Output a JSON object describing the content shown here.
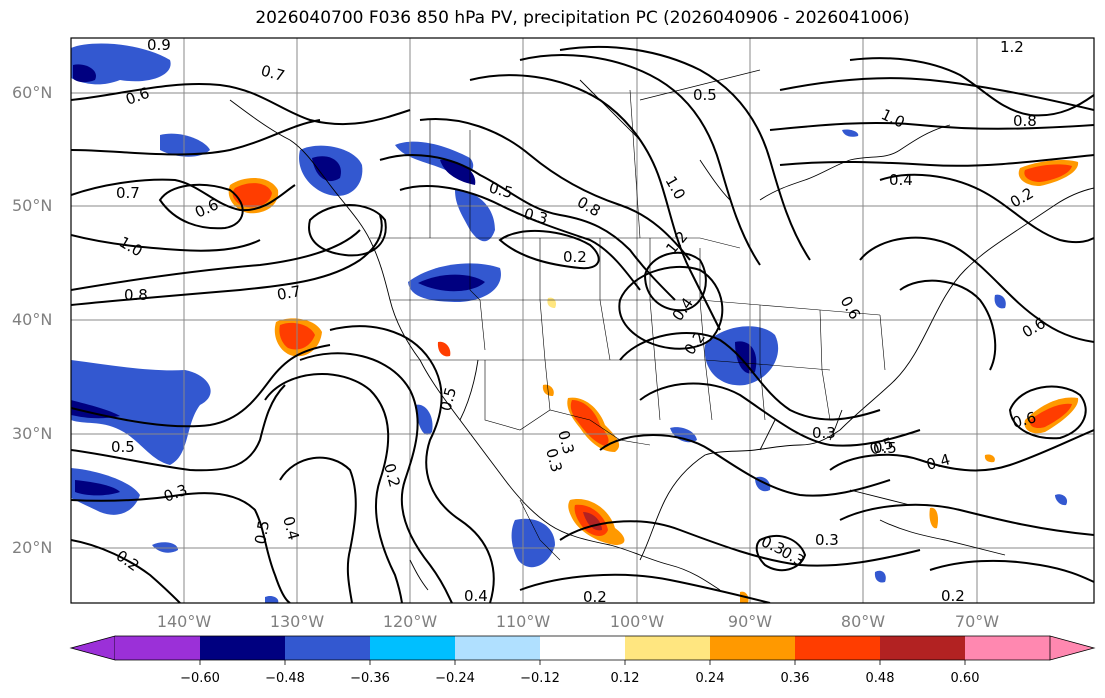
{
  "title": "2026040700 F036 850 hPa PV, precipitation PC (2026040906 - 2026041006)",
  "map": {
    "lat_labels": [
      "60°N",
      "50°N",
      "40°N",
      "30°N",
      "20°N"
    ],
    "lon_labels": [
      "140°W",
      "130°W",
      "120°W",
      "110°W",
      "100°W",
      "90°W",
      "80°W",
      "70°W"
    ],
    "contour_labels": [
      "0.9",
      "0.7",
      "0.6",
      "0.7",
      "0.6",
      "1.0",
      "0.8",
      "0.7",
      "0.5",
      "0.3",
      "0.2",
      "0.5",
      "0.3",
      "0.8",
      "1.2",
      "0.5",
      "1.0",
      "0.2",
      "0.4",
      "0.6",
      "0.5",
      "0.2",
      "0.3",
      "0.5",
      "0.4",
      "0.2",
      "0.3",
      "0.2",
      "0.4",
      "0.2",
      "0.3",
      "0.5",
      "0.4",
      "0.6",
      "0.6",
      "1.2",
      "0.8",
      "0.4",
      "0.2",
      "0.5",
      "0.3",
      "0.3",
      "1.0",
      "0.3"
    ]
  },
  "colorbar": {
    "ticks": [
      "−0.60",
      "−0.48",
      "−0.36",
      "−0.24",
      "−0.12",
      "0.12",
      "0.24",
      "0.36",
      "0.48",
      "0.60"
    ],
    "colors": [
      "#9b30d8",
      "#000080",
      "#3358d0",
      "#00bfff",
      "#b0e0ff",
      "#ffffff",
      "#ffe680",
      "#ff9900",
      "#ff3d00",
      "#b22222",
      "#ff88b0"
    ]
  }
}
